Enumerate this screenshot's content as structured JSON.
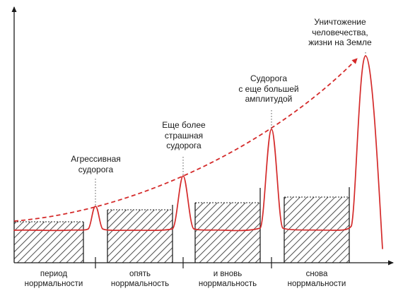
{
  "colors": {
    "curve": "#d42a2a",
    "trend": "#d42a2a",
    "axis": "#1a1a1a",
    "hatch": "#222222",
    "leader": "#555555"
  },
  "annotations": {
    "spasm1": {
      "lines": [
        "Агрессивная",
        "судорога"
      ]
    },
    "spasm2": {
      "lines": [
        "Еще более",
        "страшная",
        "судорога"
      ]
    },
    "spasm3": {
      "lines": [
        "Судорога",
        "с еще большей",
        "амплитудой"
      ]
    },
    "spasm4": {
      "lines": [
        "Уничтожение",
        "человечества,",
        "жизни на Земле"
      ]
    }
  },
  "periods": {
    "p1": {
      "lines": [
        "период",
        "норрмальности"
      ]
    },
    "p2": {
      "lines": [
        "опять",
        "норрмальность"
      ]
    },
    "p3": {
      "lines": [
        "и вновь",
        "норрмальность"
      ]
    },
    "p4": {
      "lines": [
        "снова",
        "норрмальности"
      ]
    }
  }
}
